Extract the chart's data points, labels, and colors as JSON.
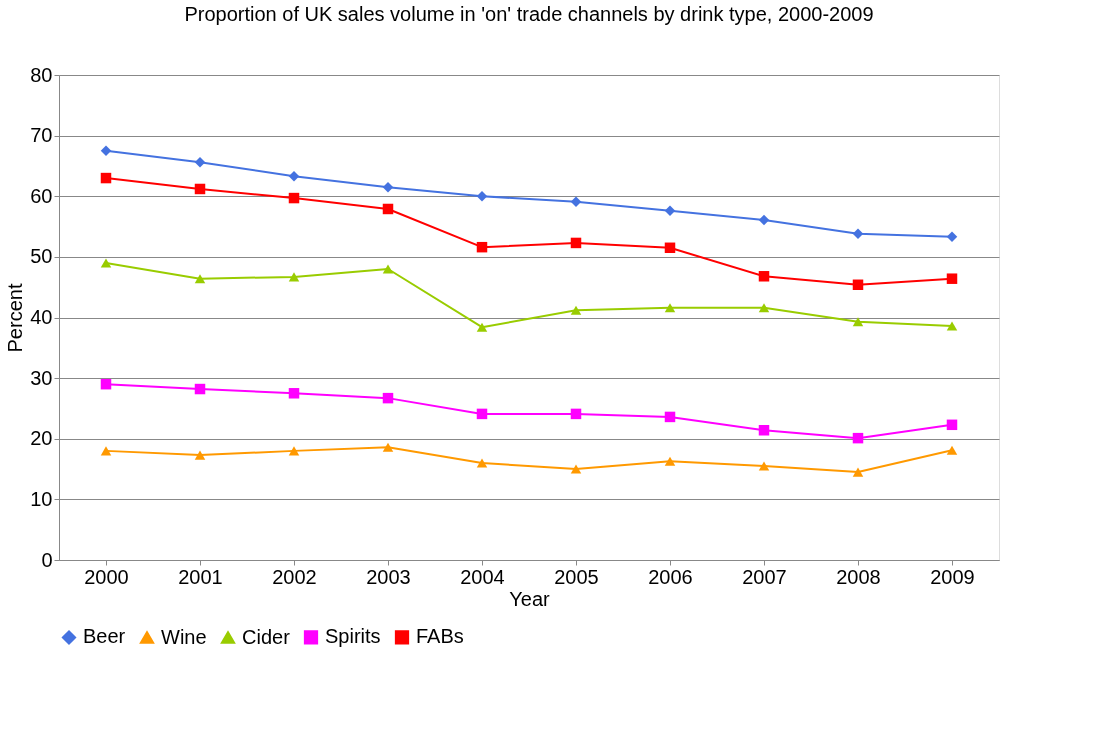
{
  "chart_data": {
    "type": "line",
    "title": "Proportion of UK sales volume in 'on' trade channels by drink type, 2000-2009",
    "xlabel": "Year",
    "ylabel": "Percent",
    "categories": [
      "2000",
      "2001",
      "2002",
      "2003",
      "2004",
      "2005",
      "2006",
      "2007",
      "2008",
      "2009"
    ],
    "ylim": [
      0,
      80
    ],
    "yticks": [
      0,
      10,
      20,
      30,
      40,
      50,
      60,
      70,
      80
    ],
    "grid": "y",
    "legend": "bottom",
    "series": [
      {
        "name": "Beer",
        "color": "#4472e0",
        "marker": "diamond",
        "values": [
          67.5,
          65.6,
          63.3,
          61.5,
          60.0,
          59.1,
          57.6,
          56.1,
          53.8,
          53.3
        ]
      },
      {
        "name": "Wine",
        "color": "#ff9900",
        "marker": "triangle",
        "values": [
          18.0,
          17.3,
          18.0,
          18.6,
          16.0,
          15.0,
          16.3,
          15.5,
          14.5,
          18.1
        ]
      },
      {
        "name": "Cider",
        "color": "#99cc00",
        "marker": "triangle",
        "values": [
          49.0,
          46.4,
          46.7,
          48.0,
          38.4,
          41.2,
          41.6,
          41.6,
          39.3,
          38.6
        ]
      },
      {
        "name": "Spirits",
        "color": "#ff00ff",
        "marker": "square",
        "values": [
          29.0,
          28.2,
          27.5,
          26.7,
          24.1,
          24.1,
          23.6,
          21.4,
          20.1,
          22.3
        ]
      },
      {
        "name": "FABs",
        "color": "#ff0000",
        "marker": "square",
        "values": [
          63.0,
          61.2,
          59.7,
          57.9,
          51.6,
          52.3,
          51.5,
          46.8,
          45.4,
          46.4
        ]
      }
    ]
  }
}
